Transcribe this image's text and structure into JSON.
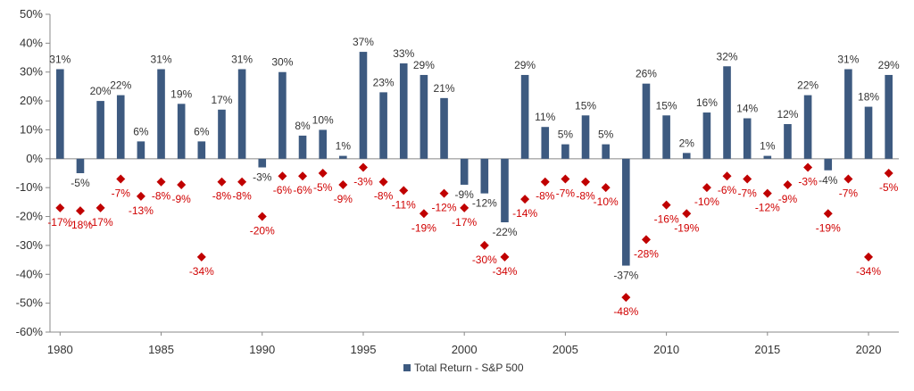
{
  "chart_data": {
    "type": "bar",
    "title": "",
    "xlabel": "",
    "ylabel": "",
    "ylim": [
      -60,
      50
    ],
    "yticks": [
      50,
      40,
      30,
      20,
      10,
      0,
      -10,
      -20,
      -30,
      -40,
      -50,
      -60
    ],
    "ytick_labels": [
      "50%",
      "40%",
      "30%",
      "20%",
      "10%",
      "0%",
      "-10%",
      "-20%",
      "-30%",
      "-40%",
      "-50%",
      "-60%"
    ],
    "xtick_labels": [
      "1980",
      "1985",
      "1990",
      "1995",
      "2000",
      "2005",
      "2010",
      "2015",
      "2020"
    ],
    "grid": false,
    "legend_position": "bottom-center",
    "categories": [
      1980,
      1981,
      1982,
      1983,
      1984,
      1985,
      1986,
      1987,
      1988,
      1989,
      1990,
      1991,
      1992,
      1993,
      1994,
      1995,
      1996,
      1997,
      1998,
      1999,
      2000,
      2001,
      2002,
      2003,
      2004,
      2005,
      2006,
      2007,
      2008,
      2009,
      2010,
      2011,
      2012,
      2013,
      2014,
      2015,
      2016,
      2017,
      2018,
      2019,
      2020,
      2021
    ],
    "series": [
      {
        "name": "Total Return - S&P 500",
        "type": "bar",
        "color": "#3d5a80",
        "values": [
          31,
          -5,
          20,
          22,
          6,
          31,
          19,
          6,
          17,
          31,
          -3,
          30,
          8,
          10,
          1,
          37,
          23,
          33,
          29,
          21,
          -9,
          -12,
          -22,
          29,
          11,
          5,
          15,
          5,
          -37,
          26,
          15,
          2,
          16,
          32,
          14,
          1,
          12,
          22,
          -4,
          31,
          18,
          29
        ],
        "labels": [
          "31%",
          "-5%",
          "20%",
          "22%",
          "6%",
          "31%",
          "19%",
          "6%",
          "17%",
          "31%",
          "-3%",
          "30%",
          "8%",
          "10%",
          "1%",
          "37%",
          "23%",
          "33%",
          "29%",
          "21%",
          "-9%",
          "-12%",
          "-22%",
          "29%",
          "11%",
          "5%",
          "15%",
          "5%",
          "-37%",
          "26%",
          "15%",
          "2%",
          "16%",
          "32%",
          "14%",
          "1%",
          "12%",
          "22%",
          "-4%",
          "31%",
          "18%",
          "29%"
        ]
      },
      {
        "type": "scatter",
        "marker": "diamond",
        "color": "#c00000",
        "values": [
          -17,
          -18,
          -17,
          -7,
          -13,
          -8,
          -9,
          -34,
          -8,
          -8,
          -20,
          -6,
          -6,
          -5,
          -9,
          -3,
          -8,
          -11,
          -19,
          -12,
          -17,
          -30,
          -34,
          -14,
          -8,
          -7,
          -8,
          -10,
          -48,
          -28,
          -16,
          -19,
          -10,
          -6,
          -7,
          -12,
          -9,
          -3,
          -19,
          -7,
          -34,
          -5
        ],
        "labels": [
          "-17%",
          "-18%",
          "-17%",
          "-7%",
          "-13%",
          "-8%",
          "-9%",
          "-34%",
          "-8%",
          "-8%",
          "-20%",
          "-6%",
          "-6%",
          "-5%",
          "-9%",
          "-3%",
          "-8%",
          "-11%",
          "-19%",
          "-12%",
          "-17%",
          "-30%",
          "-34%",
          "-14%",
          "-8%",
          "-7%",
          "-8%",
          "-10%",
          "-48%",
          "-28%",
          "-16%",
          "-19%",
          "-10%",
          "-6%",
          "-7%",
          "-12%",
          "-9%",
          "-3%",
          "-19%",
          "-7%",
          "-34%",
          "-5%"
        ]
      }
    ]
  }
}
